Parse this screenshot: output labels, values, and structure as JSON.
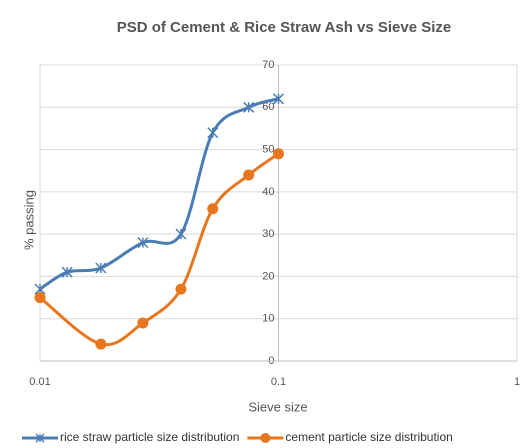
{
  "chart_data": {
    "type": "line",
    "title": "PSD of Cement & Rice Straw Ash vs Sieve Size",
    "x_label": "Sieve size",
    "y_label": "% passing",
    "x_log": true,
    "grid": true,
    "legend": "bottom",
    "xlim": [
      0.01,
      1
    ],
    "xticks": [
      0.01,
      0.1,
      1
    ],
    "ylim": [
      0,
      70
    ],
    "yticks": [
      0,
      10,
      20,
      30,
      40,
      50,
      60,
      70
    ],
    "series": [
      {
        "name": "rice straw particle size distribution",
        "color": "#4a7db4",
        "marker": "asterisk",
        "x": [
          0.01,
          0.013,
          0.018,
          0.027,
          0.039,
          0.053,
          0.075,
          0.1
        ],
        "values": [
          17,
          21,
          22,
          28,
          30,
          54,
          60,
          62
        ]
      },
      {
        "name": "cement particle size distribution",
        "color": "#e8761e",
        "marker": "circle",
        "x": [
          0.01,
          0.018,
          0.027,
          0.039,
          0.053,
          0.075,
          0.1
        ],
        "values": [
          15,
          4,
          9,
          17,
          36,
          44,
          49
        ]
      }
    ]
  }
}
